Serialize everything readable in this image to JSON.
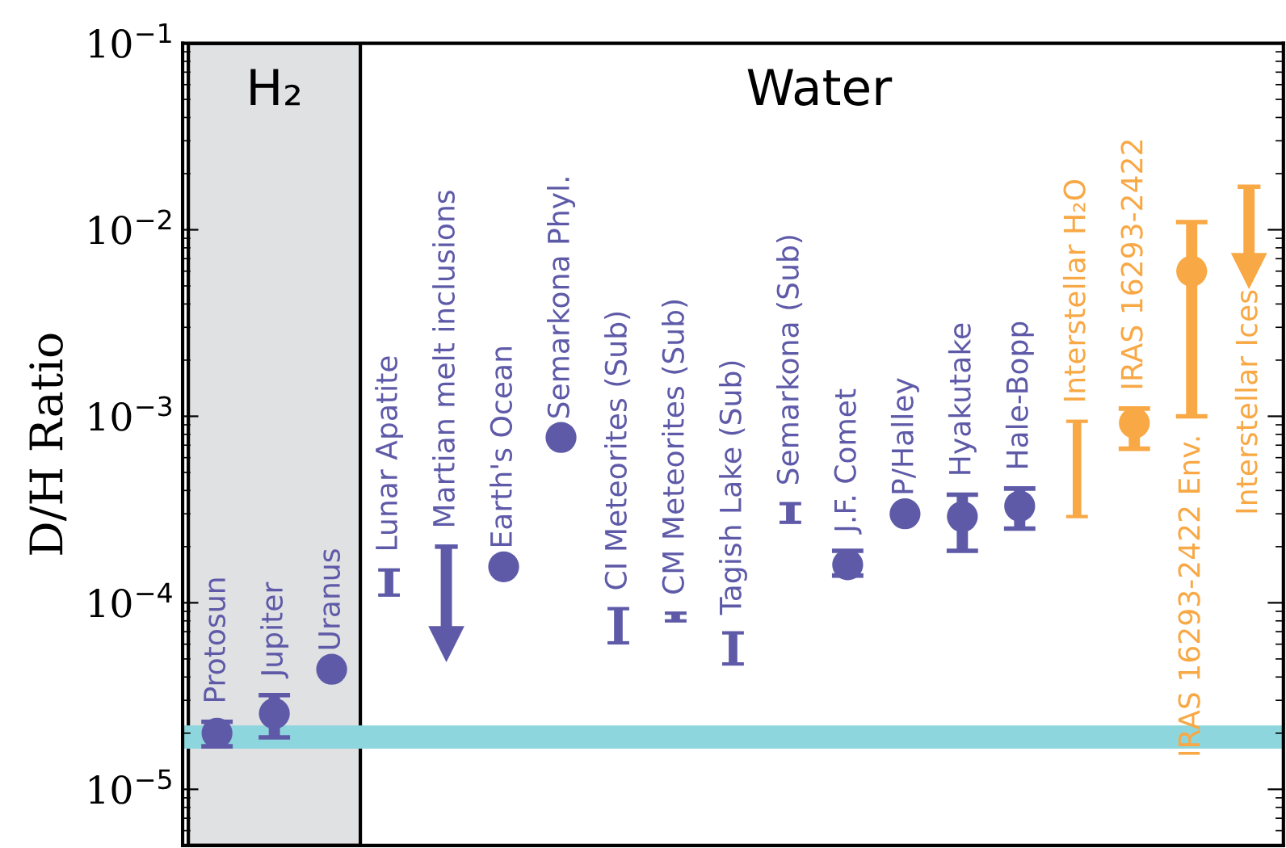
{
  "chart_data": {
    "type": "scatter",
    "ylabel": "D/H Ratio",
    "categories": [
      "Protosun",
      "Jupiter",
      "Uranus",
      "Lunar Apatite",
      "Martian melt inclusions",
      "Earth's Ocean",
      "Semarkona Phyl.",
      "CI Meteorites (Sub)",
      "CM Meteorites (Sub)",
      "Tagish Lake (Sub)",
      "Semarkona (Sub)",
      "J.F. Comet",
      "P/Halley",
      "Hyakutake",
      "Hale-Bopp",
      "Interstellar H₂O",
      "IRAS 16293-2422",
      "IRAS 16293-2422 Env.",
      "Interstellar Ices"
    ],
    "series": [
      {
        "color": "#5e5aa8",
        "marker": "circle",
        "values": [
          2e-05,
          2.55e-05,
          4.4e-05,
          null,
          null,
          0.000156,
          0.00077,
          null,
          null,
          null,
          null,
          0.00016,
          0.0003,
          0.00029,
          0.00033,
          null,
          null,
          null,
          null
        ],
        "errors": [
          [
            1.7e-05,
            2.3e-05
          ],
          [
            1.9e-05,
            3.2e-05
          ],
          null,
          null,
          null,
          null,
          null,
          null,
          null,
          null,
          null,
          [
            0.00014,
            0.00019
          ],
          null,
          [
            0.00019,
            0.00038
          ],
          [
            0.00025,
            0.00041
          ],
          null,
          null,
          null,
          null
        ]
      },
      {
        "type": "bar",
        "color": "#5e5aa8",
        "base": [
          null,
          null,
          null,
          0.00011,
          null,
          null,
          null,
          6.1e-05,
          8e-05,
          4.7e-05,
          0.00027,
          null,
          null,
          null,
          null,
          null,
          null,
          null,
          null
        ],
        "values": [
          null,
          null,
          null,
          4e-05,
          null,
          null,
          null,
          3.2e-05,
          8e-06,
          2.2e-05,
          7e-05,
          null,
          null,
          null,
          null,
          null,
          null,
          null,
          null
        ]
      },
      {
        "color": "#5e5aa8",
        "marker": "triangle",
        "values": [
          null,
          null,
          null,
          null,
          6e-05,
          null,
          null,
          null,
          null,
          null,
          null,
          null,
          null,
          null,
          null,
          null,
          null,
          null,
          null
        ],
        "errors": [
          null,
          null,
          null,
          null,
          [
            6e-05,
            0.0002
          ],
          null,
          null,
          null,
          null,
          null,
          null,
          null,
          null,
          null,
          null,
          null,
          null,
          null,
          null
        ]
      },
      {
        "color": "#f8a844",
        "marker": "circle",
        "values": [
          null,
          null,
          null,
          null,
          null,
          null,
          null,
          null,
          null,
          null,
          null,
          null,
          null,
          null,
          null,
          null,
          0.00092,
          0.006,
          null
        ],
        "errors": [
          null,
          null,
          null,
          null,
          null,
          null,
          null,
          null,
          null,
          null,
          null,
          null,
          null,
          null,
          null,
          null,
          [
            0.00067,
            0.0011
          ],
          [
            0.001,
            0.011
          ],
          null
        ]
      },
      {
        "type": "bar",
        "color": "#f8a844",
        "base": [
          null,
          null,
          null,
          null,
          null,
          null,
          null,
          null,
          null,
          null,
          null,
          null,
          null,
          null,
          null,
          0.00029,
          null,
          null,
          null
        ],
        "values": [
          null,
          null,
          null,
          null,
          null,
          null,
          null,
          null,
          null,
          null,
          null,
          null,
          null,
          null,
          null,
          0.00065,
          null,
          null,
          null
        ]
      },
      {
        "color": "#f8a844",
        "marker": "triangle",
        "values": [
          null,
          null,
          null,
          null,
          null,
          null,
          null,
          null,
          null,
          null,
          null,
          null,
          null,
          null,
          null,
          null,
          null,
          null,
          0.006
        ],
        "errors": [
          null,
          null,
          null,
          null,
          null,
          null,
          null,
          null,
          null,
          null,
          null,
          null,
          null,
          null,
          null,
          null,
          null,
          null,
          [
            0.006,
            0.017
          ]
        ]
      }
    ],
    "log": "y",
    "ylim": [
      5e-06,
      0.1
    ],
    "yticks": [
      {
        "value": 1e-05,
        "label": "10$^{−5}$"
      },
      {
        "value": 0.0001,
        "label": "10$^{−4}$"
      },
      {
        "value": 0.001,
        "label": "10$^{−3}$"
      },
      {
        "value": 0.01,
        "label": "10$^{−2}$"
      },
      {
        "value": 0.1,
        "label": "10$^{−1}$"
      }
    ],
    "tick_labels": "y",
    "grid": false,
    "bands": [
      {
        "axis": "x",
        "from": "Protosun",
        "to": "Uranus",
        "label": "H₂",
        "color": "#e0e1e3"
      },
      {
        "axis": "y",
        "from": 1.65e-05,
        "to": 2.2e-05,
        "color": "#8ed6de"
      }
    ],
    "annotations": [
      "Water"
    ]
  }
}
